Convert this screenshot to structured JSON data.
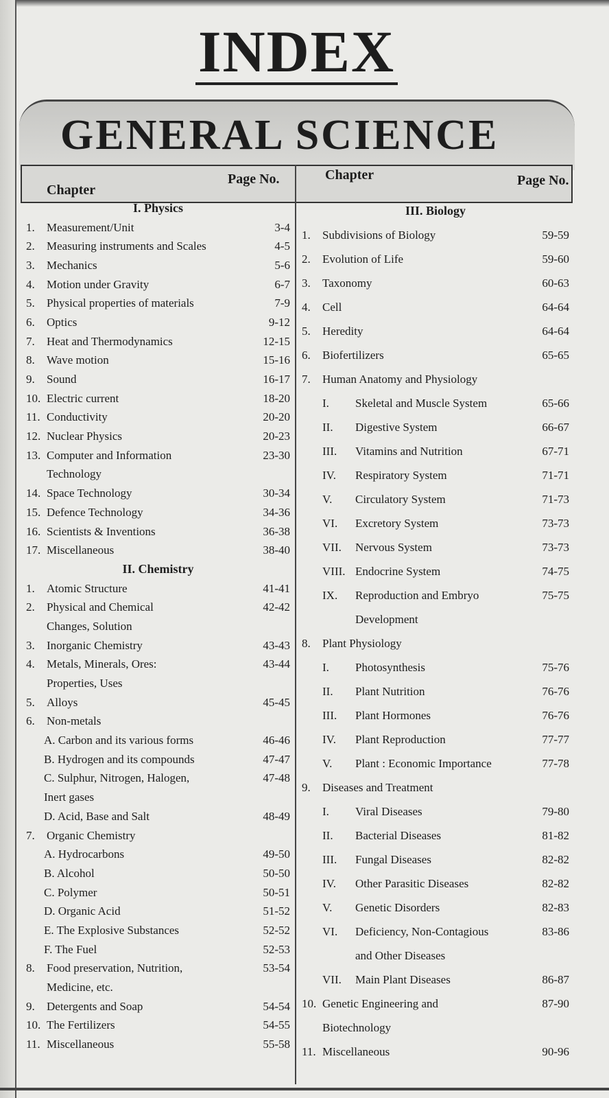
{
  "title": "INDEX",
  "banner": "GENERAL SCIENCE",
  "header": {
    "chapter_left": "Chapter",
    "page_left": "Page No.",
    "chapter_right": "Chapter",
    "page_right": "Page No."
  },
  "left": [
    {
      "sect": "I. Physics"
    },
    {
      "n": "1.",
      "t": [
        "Measurement/Unit"
      ],
      "p": "3-4"
    },
    {
      "n": "2.",
      "t": [
        "Measuring instruments and Scales"
      ],
      "p": "4-5"
    },
    {
      "n": "3.",
      "t": [
        "Mechanics"
      ],
      "p": "5-6"
    },
    {
      "n": "4.",
      "t": [
        "Motion under Gravity"
      ],
      "p": "6-7"
    },
    {
      "n": "5.",
      "t": [
        "Physical properties of materials"
      ],
      "p": "7-9"
    },
    {
      "n": "6.",
      "t": [
        "Optics"
      ],
      "p": "9-12"
    },
    {
      "n": "7.",
      "t": [
        "Heat and Thermodynamics"
      ],
      "p": "12-15"
    },
    {
      "n": "8.",
      "t": [
        "Wave motion"
      ],
      "p": "15-16"
    },
    {
      "n": "9.",
      "t": [
        "Sound"
      ],
      "p": "16-17"
    },
    {
      "n": "10.",
      "t": [
        "Electric current"
      ],
      "p": "18-20"
    },
    {
      "n": "11.",
      "t": [
        "Conductivity"
      ],
      "p": "20-20"
    },
    {
      "n": "12.",
      "t": [
        "Nuclear Physics"
      ],
      "p": "20-23"
    },
    {
      "n": "13.",
      "t": [
        "Computer and Information",
        "Technology"
      ],
      "p": "23-30"
    },
    {
      "n": "14.",
      "t": [
        "Space Technology"
      ],
      "p": "30-34"
    },
    {
      "n": "15.",
      "t": [
        "Defence Technology"
      ],
      "p": "34-36"
    },
    {
      "n": "16.",
      "t": [
        "Scientists & Inventions"
      ],
      "p": "36-38"
    },
    {
      "n": "17.",
      "t": [
        "Miscellaneous"
      ],
      "p": "38-40"
    },
    {
      "sect": "II. Chemistry"
    },
    {
      "n": "1.",
      "t": [
        "Atomic Structure"
      ],
      "p": "41-41"
    },
    {
      "n": "2.",
      "t": [
        "Physical and Chemical",
        "Changes, Solution"
      ],
      "p": "42-42"
    },
    {
      "n": "3.",
      "t": [
        "Inorganic Chemistry"
      ],
      "p": "43-43"
    },
    {
      "n": "4.",
      "t": [
        "Metals, Minerals, Ores:",
        "Properties, Uses"
      ],
      "p": "43-44"
    },
    {
      "n": "5.",
      "t": [
        "Alloys"
      ],
      "p": "45-45"
    },
    {
      "n": "6.",
      "t": [
        "Non-metals"
      ],
      "p": ""
    },
    {
      "sub": true,
      "n": "",
      "t": [
        "A. Carbon and its various forms"
      ],
      "p": "46-46"
    },
    {
      "sub": true,
      "n": "",
      "t": [
        "B. Hydrogen and its compounds"
      ],
      "p": "47-47"
    },
    {
      "sub": true,
      "n": "",
      "t": [
        "C. Sulphur, Nitrogen, Halogen,",
        "Inert gases"
      ],
      "p": "47-48"
    },
    {
      "sub": true,
      "n": "",
      "t": [
        "D. Acid, Base and Salt"
      ],
      "p": "48-49"
    },
    {
      "n": "7.",
      "t": [
        "Organic Chemistry"
      ],
      "p": ""
    },
    {
      "sub": true,
      "n": "",
      "t": [
        "A. Hydrocarbons"
      ],
      "p": "49-50"
    },
    {
      "sub": true,
      "n": "",
      "t": [
        "B. Alcohol"
      ],
      "p": "50-50"
    },
    {
      "sub": true,
      "n": "",
      "t": [
        "C. Polymer"
      ],
      "p": "50-51"
    },
    {
      "sub": true,
      "n": "",
      "t": [
        "D. Organic Acid"
      ],
      "p": "51-52"
    },
    {
      "sub": true,
      "n": "",
      "t": [
        "E. The Explosive Substances"
      ],
      "p": "52-52"
    },
    {
      "sub": true,
      "n": "",
      "t": [
        "F. The Fuel"
      ],
      "p": "52-53"
    },
    {
      "n": "8.",
      "t": [
        "Food preservation, Nutrition,",
        "Medicine, etc."
      ],
      "p": "53-54"
    },
    {
      "n": "9.",
      "t": [
        "Detergents and Soap"
      ],
      "p": "54-54"
    },
    {
      "n": "10.",
      "t": [
        "The Fertilizers"
      ],
      "p": "54-55"
    },
    {
      "n": "11.",
      "t": [
        "Miscellaneous"
      ],
      "p": "55-58"
    }
  ],
  "right": [
    {
      "sect": "III. Biology"
    },
    {
      "n": "1.",
      "t": [
        "Subdivisions of Biology"
      ],
      "p": "59-59"
    },
    {
      "n": "2.",
      "t": [
        "Evolution of Life"
      ],
      "p": "59-60"
    },
    {
      "n": "3.",
      "t": [
        "Taxonomy"
      ],
      "p": "60-63"
    },
    {
      "n": "4.",
      "t": [
        "Cell"
      ],
      "p": "64-64"
    },
    {
      "n": "5.",
      "t": [
        "Heredity"
      ],
      "p": "64-64"
    },
    {
      "n": "6.",
      "t": [
        "Biofertilizers"
      ],
      "p": "65-65"
    },
    {
      "n": "7.",
      "t": [
        "Human Anatomy and Physiology"
      ],
      "p": ""
    },
    {
      "sub": true,
      "n": "I.",
      "t": [
        "Skeletal and Muscle System"
      ],
      "p": "65-66"
    },
    {
      "sub": true,
      "n": "II.",
      "t": [
        "Digestive System"
      ],
      "p": "66-67"
    },
    {
      "sub": true,
      "n": "III.",
      "t": [
        "Vitamins and Nutrition"
      ],
      "p": "67-71"
    },
    {
      "sub": true,
      "n": "IV.",
      "t": [
        "Respiratory System"
      ],
      "p": "71-71"
    },
    {
      "sub": true,
      "n": "V.",
      "t": [
        "Circulatory System"
      ],
      "p": "71-73"
    },
    {
      "sub": true,
      "n": "VI.",
      "t": [
        "Excretory System"
      ],
      "p": "73-73"
    },
    {
      "sub": true,
      "n": "VII.",
      "t": [
        "Nervous System"
      ],
      "p": "73-73"
    },
    {
      "sub": true,
      "n": "VIII.",
      "t": [
        "Endocrine System"
      ],
      "p": "74-75"
    },
    {
      "sub": true,
      "n": "IX.",
      "t": [
        "Reproduction and Embryo",
        "Development"
      ],
      "p": "75-75"
    },
    {
      "n": "8.",
      "t": [
        "Plant Physiology"
      ],
      "p": ""
    },
    {
      "sub": true,
      "n": "I.",
      "t": [
        "Photosynthesis"
      ],
      "p": "75-76"
    },
    {
      "sub": true,
      "n": "II.",
      "t": [
        "Plant Nutrition"
      ],
      "p": "76-76"
    },
    {
      "sub": true,
      "n": "III.",
      "t": [
        "Plant Hormones"
      ],
      "p": "76-76"
    },
    {
      "sub": true,
      "n": "IV.",
      "t": [
        "Plant Reproduction"
      ],
      "p": "77-77"
    },
    {
      "sub": true,
      "n": "V.",
      "t": [
        "Plant : Economic Importance"
      ],
      "p": "77-78"
    },
    {
      "n": "9.",
      "t": [
        "Diseases and Treatment"
      ],
      "p": ""
    },
    {
      "sub": true,
      "n": "I.",
      "t": [
        "Viral Diseases"
      ],
      "p": "79-80"
    },
    {
      "sub": true,
      "n": "II.",
      "t": [
        "Bacterial Diseases"
      ],
      "p": "81-82"
    },
    {
      "sub": true,
      "n": "III.",
      "t": [
        "Fungal Diseases"
      ],
      "p": "82-82"
    },
    {
      "sub": true,
      "n": "IV.",
      "t": [
        "Other Parasitic Diseases"
      ],
      "p": "82-82"
    },
    {
      "sub": true,
      "n": "V.",
      "t": [
        "Genetic Disorders"
      ],
      "p": "82-83"
    },
    {
      "sub": true,
      "n": "VI.",
      "t": [
        "Deficiency, Non-Contagious",
        "and Other Diseases"
      ],
      "p": "83-86"
    },
    {
      "sub": true,
      "n": "VII.",
      "t": [
        "Main Plant Diseases"
      ],
      "p": "86-87"
    },
    {
      "n": "10.",
      "t": [
        "Genetic Engineering and",
        "Biotechnology"
      ],
      "p": "87-90"
    },
    {
      "n": "11.",
      "t": [
        "Miscellaneous"
      ],
      "p": "90-96"
    }
  ]
}
